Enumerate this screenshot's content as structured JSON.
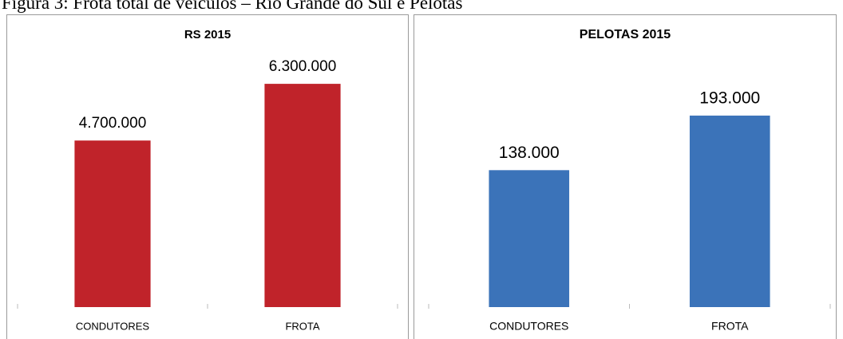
{
  "caption": "Figura 3: Frota total de veículos – Rio Grande do Sul e Pelotas",
  "chart_data": [
    {
      "type": "bar",
      "title": "RS 2015",
      "categories": [
        "CONDUTORES",
        "FROTA"
      ],
      "values": [
        4700000,
        6300000
      ],
      "value_labels": [
        "4.700.000",
        "6.300.000"
      ],
      "color": "#c0232a",
      "ylim": [
        0,
        7000000
      ]
    },
    {
      "type": "bar",
      "title": "PELOTAS 2015",
      "categories": [
        "CONDUTORES",
        "FROTA"
      ],
      "values": [
        138000,
        193000
      ],
      "value_labels": [
        "138.000",
        "193.000"
      ],
      "color": "#3b73b9",
      "ylim": [
        0,
        250000
      ]
    }
  ]
}
